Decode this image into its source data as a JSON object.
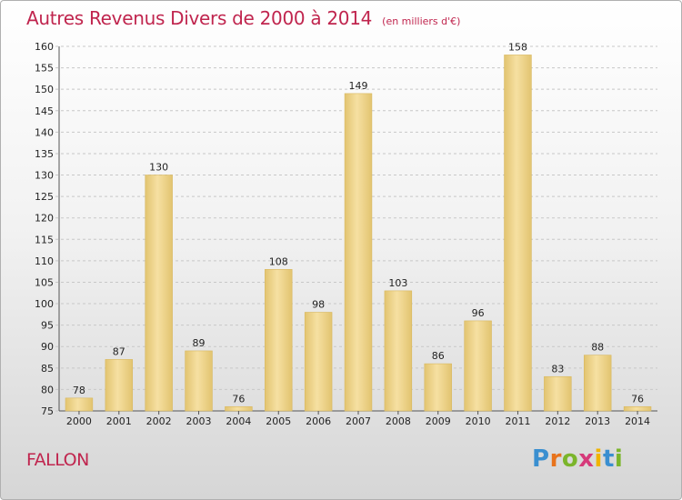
{
  "title": "Autres Revenus Divers de 2000 à 2014",
  "unit_note": "(en milliers d'€)",
  "commune": "FALLON",
  "logo": {
    "text": "Proxiti",
    "letters": [
      {
        "char": "P",
        "color": "#3a8fd0"
      },
      {
        "char": "r",
        "color": "#e8731c"
      },
      {
        "char": "o",
        "color": "#7bb52b"
      },
      {
        "char": "x",
        "color": "#d63a7a"
      },
      {
        "char": "i",
        "color": "#f0b400"
      },
      {
        "char": "t",
        "color": "#3a8fd0"
      },
      {
        "char": "i",
        "color": "#7bb52b"
      }
    ]
  },
  "colors": {
    "title": "#c0254e",
    "bar_light": "#f6e0a2",
    "bar_dark": "#e2c470",
    "grid": "#c8c8c8"
  },
  "chart_data": {
    "type": "bar",
    "title": "Autres Revenus Divers de 2000 à 2014",
    "subtitle": "(en milliers d'€)",
    "categories": [
      "2000",
      "2001",
      "2002",
      "2003",
      "2004",
      "2005",
      "2006",
      "2007",
      "2008",
      "2009",
      "2010",
      "2011",
      "2012",
      "2013",
      "2014"
    ],
    "values": [
      78,
      87,
      130,
      89,
      76,
      108,
      98,
      149,
      103,
      86,
      96,
      158,
      83,
      88,
      76
    ],
    "ylim": [
      75,
      160
    ],
    "yticks": [
      75,
      80,
      85,
      90,
      95,
      100,
      105,
      110,
      115,
      120,
      125,
      130,
      135,
      140,
      145,
      150,
      155,
      160
    ],
    "grid": true,
    "xlabel": "",
    "ylabel": ""
  }
}
